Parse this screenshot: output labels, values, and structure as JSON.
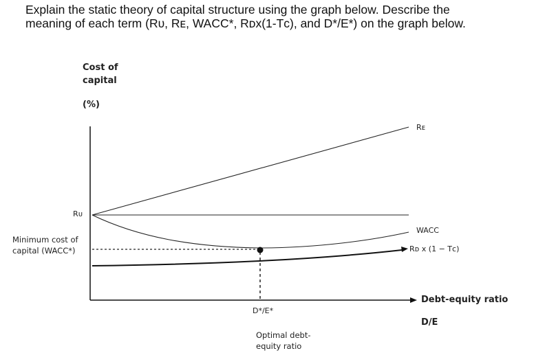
{
  "question": {
    "line1": "Explain the static theory of capital structure using the graph below. Describe the",
    "line2": "meaning of each term (Rᴜ, Rᴇ, WACC*, Rᴅx(1-Tᴄ), and D*/E*) on the graph below."
  },
  "diagram": {
    "y_axis_label_line1": "Cost of",
    "y_axis_label_line2": "capital",
    "y_axis_label_line3": "(%)",
    "x_axis_label_line1": "Debt-equity ratio",
    "x_axis_label_line2": "D/E",
    "ru_label": "Rᴜ",
    "re_label": "Rᴇ",
    "wacc_label": "WACC",
    "rd_label": "Rᴅ x (1 − Tᴄ)",
    "min_cost_line1": "Minimum cost of",
    "min_cost_line2": "capital (WACC*)",
    "optimal_ratio_label": "D*/E*",
    "optimal_desc_line1": "Optimal debt-",
    "optimal_desc_line2": "equity ratio"
  }
}
